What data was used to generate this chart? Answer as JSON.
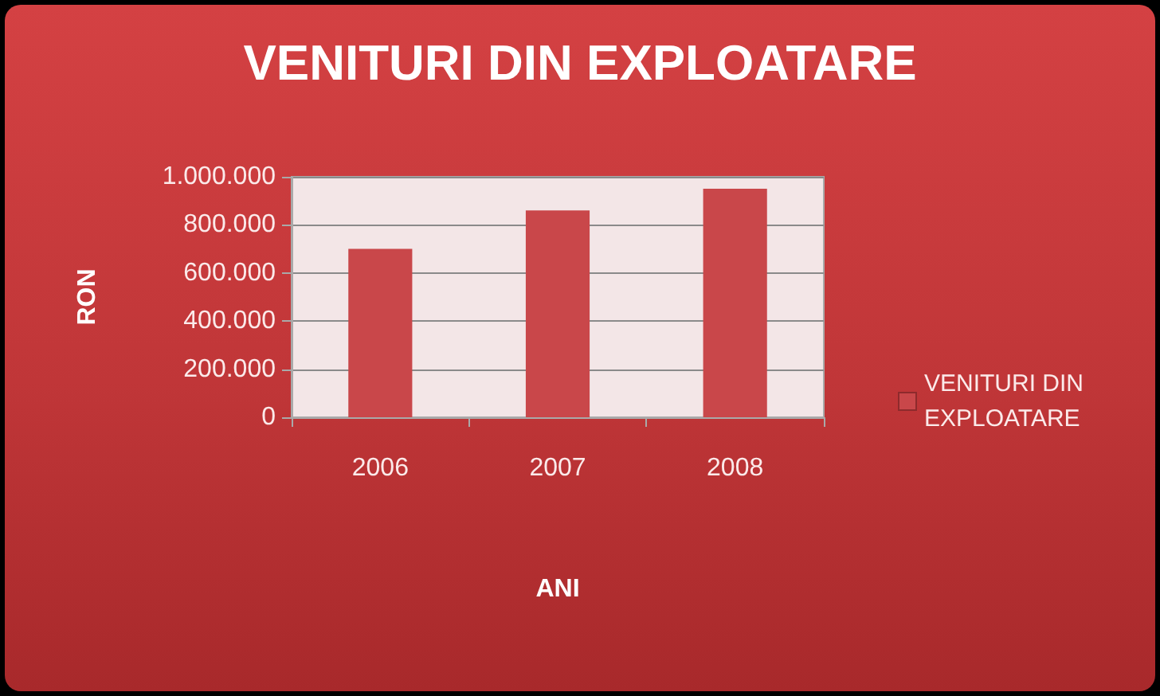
{
  "chart_data": {
    "type": "bar",
    "title": "VENITURI DIN EXPLOATARE",
    "xlabel": "ANI",
    "ylabel": "RON",
    "categories": [
      "2006",
      "2007",
      "2008"
    ],
    "series": [
      {
        "name": "VENITURI DIN EXPLOATARE",
        "color": "#c9474a",
        "values": [
          700000,
          860000,
          950000
        ]
      }
    ],
    "ylim": [
      0,
      1000000
    ],
    "yticks": [
      0,
      {
        "value": 200000,
        "label": "200.000"
      },
      {
        "value": 400000,
        "label": "400.000"
      },
      {
        "value": 600000,
        "label": "600.000"
      },
      {
        "value": 800000,
        "label": "800.000"
      },
      {
        "value": 1000000,
        "label": "1.000.000"
      }
    ],
    "grid": "y",
    "legend": "right"
  }
}
